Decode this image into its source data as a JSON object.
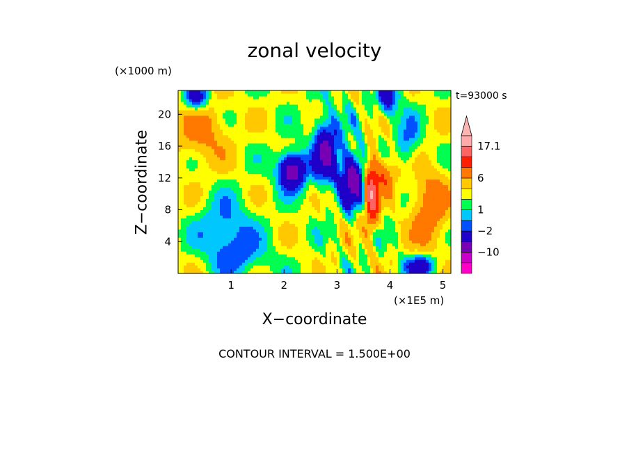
{
  "chart_data": {
    "type": "heatmap",
    "title": "zonal velocity",
    "xlabel": "X−coordinate",
    "ylabel": "Z−coordinate",
    "x_units": "(×1E5 m)",
    "y_units": "(×1000 m)",
    "time_label": "t=93000 s",
    "footer": "CONTOUR INTERVAL = 1.500E+00",
    "xlim": [
      0,
      5.15
    ],
    "ylim": [
      0,
      23
    ],
    "x_ticks": [
      1,
      2,
      3,
      4,
      5
    ],
    "y_ticks": [
      4,
      8,
      12,
      16,
      20
    ],
    "x_tick_labels": [
      "1",
      "2",
      "3",
      "4",
      "5"
    ],
    "y_tick_labels": [
      "4",
      "8",
      "12",
      "16",
      "20"
    ],
    "colorbar": {
      "labels": [
        "17.1",
        "6",
        "1",
        "−2",
        "−10"
      ],
      "label_values": [
        17.1,
        6,
        1,
        -2,
        -10
      ],
      "levels": [
        -18,
        -14,
        -10,
        -6,
        -2,
        -0.5,
        1,
        2.5,
        4,
        6,
        9,
        13,
        17.1
      ],
      "colors": [
        "#ff00c8",
        "#c800c8",
        "#7800b4",
        "#1e00c8",
        "#0050ff",
        "#00c8ff",
        "#00ff50",
        "#ffff00",
        "#ffc800",
        "#ff7800",
        "#ff1e00",
        "#ff6464",
        "#ffaaaa",
        "#ffb4b4"
      ]
    },
    "grid": false
  }
}
